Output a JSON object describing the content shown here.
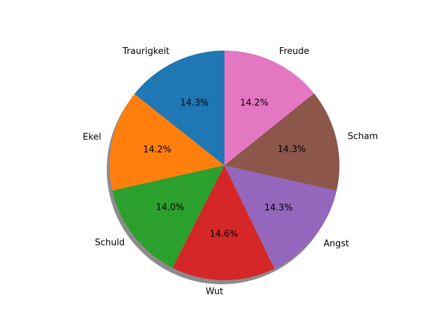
{
  "chart_data": {
    "type": "pie",
    "title": "",
    "start_angle_deg": 90,
    "counterclock": true,
    "shadow": true,
    "slices": [
      {
        "label": "Traurigkeit",
        "value": 14.3,
        "pct_text": "14.3%",
        "color": "#1f77b4"
      },
      {
        "label": "Ekel",
        "value": 14.2,
        "pct_text": "14.2%",
        "color": "#ff7f0e"
      },
      {
        "label": "Schuld",
        "value": 14.0,
        "pct_text": "14.0%",
        "color": "#2ca02c"
      },
      {
        "label": "Wut",
        "value": 14.6,
        "pct_text": "14.6%",
        "color": "#d62728"
      },
      {
        "label": "Angst",
        "value": 14.3,
        "pct_text": "14.3%",
        "color": "#9467bd"
      },
      {
        "label": "Scham",
        "value": 14.3,
        "pct_text": "14.3%",
        "color": "#8c564b"
      },
      {
        "label": "Freude",
        "value": 14.2,
        "pct_text": "14.2%",
        "color": "#e377c2"
      }
    ]
  }
}
